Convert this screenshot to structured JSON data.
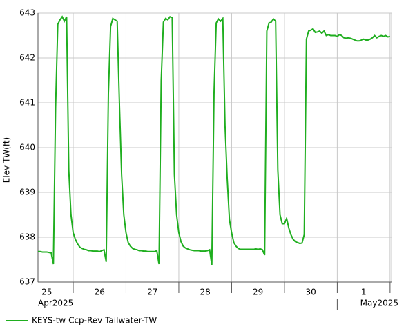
{
  "chart_data": {
    "type": "line",
    "y_label": "Elev TW(ft)",
    "x": [
      "2025-04-25T08:00",
      "2025-04-25T09:00",
      "2025-04-25T10:00",
      "2025-04-25T11:00",
      "2025-04-25T12:00",
      "2025-04-25T13:00",
      "2025-04-25T14:00",
      "2025-04-25T15:00",
      "2025-04-25T16:00",
      "2025-04-25T17:00",
      "2025-04-25T18:00",
      "2025-04-25T19:00",
      "2025-04-25T20:00",
      "2025-04-25T21:00",
      "2025-04-25T22:00",
      "2025-04-25T23:00",
      "2025-04-26T00:00",
      "2025-04-26T01:00",
      "2025-04-26T02:00",
      "2025-04-26T03:00",
      "2025-04-26T04:00",
      "2025-04-26T05:00",
      "2025-04-26T06:00",
      "2025-04-26T07:00",
      "2025-04-26T08:00",
      "2025-04-26T09:00",
      "2025-04-26T10:00",
      "2025-04-26T11:00",
      "2025-04-26T12:00",
      "2025-04-26T13:00",
      "2025-04-26T14:00",
      "2025-04-26T15:00",
      "2025-04-26T16:00",
      "2025-04-26T17:00",
      "2025-04-26T18:00",
      "2025-04-26T19:00",
      "2025-04-26T20:00",
      "2025-04-26T21:00",
      "2025-04-26T22:00",
      "2025-04-26T23:00",
      "2025-04-27T00:00",
      "2025-04-27T01:00",
      "2025-04-27T02:00",
      "2025-04-27T03:00",
      "2025-04-27T04:00",
      "2025-04-27T05:00",
      "2025-04-27T06:00",
      "2025-04-27T07:00",
      "2025-04-27T08:00",
      "2025-04-27T09:00",
      "2025-04-27T10:00",
      "2025-04-27T11:00",
      "2025-04-27T12:00",
      "2025-04-27T13:00",
      "2025-04-27T14:00",
      "2025-04-27T15:00",
      "2025-04-27T16:00",
      "2025-04-27T17:00",
      "2025-04-27T18:00",
      "2025-04-27T19:00",
      "2025-04-27T20:00",
      "2025-04-27T21:00",
      "2025-04-27T22:00",
      "2025-04-27T23:00",
      "2025-04-28T00:00",
      "2025-04-28T01:00",
      "2025-04-28T02:00",
      "2025-04-28T03:00",
      "2025-04-28T04:00",
      "2025-04-28T05:00",
      "2025-04-28T06:00",
      "2025-04-28T07:00",
      "2025-04-28T08:00",
      "2025-04-28T09:00",
      "2025-04-28T10:00",
      "2025-04-28T11:00",
      "2025-04-28T12:00",
      "2025-04-28T13:00",
      "2025-04-28T14:00",
      "2025-04-28T15:00",
      "2025-04-28T16:00",
      "2025-04-28T17:00",
      "2025-04-28T18:00",
      "2025-04-28T19:00",
      "2025-04-28T20:00",
      "2025-04-28T21:00",
      "2025-04-28T22:00",
      "2025-04-28T23:00",
      "2025-04-29T00:00",
      "2025-04-29T01:00",
      "2025-04-29T02:00",
      "2025-04-29T03:00",
      "2025-04-29T04:00",
      "2025-04-29T05:00",
      "2025-04-29T06:00",
      "2025-04-29T07:00",
      "2025-04-29T08:00",
      "2025-04-29T09:00",
      "2025-04-29T10:00",
      "2025-04-29T11:00",
      "2025-04-29T12:00",
      "2025-04-29T13:00",
      "2025-04-29T14:00",
      "2025-04-29T15:00",
      "2025-04-29T16:00",
      "2025-04-29T17:00",
      "2025-04-29T18:00",
      "2025-04-29T19:00",
      "2025-04-29T20:00",
      "2025-04-29T21:00",
      "2025-04-29T22:00",
      "2025-04-29T23:00",
      "2025-04-30T00:00",
      "2025-04-30T01:00",
      "2025-04-30T02:00",
      "2025-04-30T03:00",
      "2025-04-30T04:00",
      "2025-04-30T05:00",
      "2025-04-30T06:00",
      "2025-04-30T07:00",
      "2025-04-30T08:00",
      "2025-04-30T09:00",
      "2025-04-30T10:00",
      "2025-04-30T11:00",
      "2025-04-30T12:00",
      "2025-04-30T13:00",
      "2025-04-30T14:00",
      "2025-04-30T15:00",
      "2025-04-30T16:00",
      "2025-04-30T17:00",
      "2025-04-30T18:00",
      "2025-04-30T19:00",
      "2025-04-30T20:00",
      "2025-04-30T21:00",
      "2025-04-30T22:00",
      "2025-04-30T23:00",
      "2025-05-01T00:00",
      "2025-05-01T01:00",
      "2025-05-01T02:00",
      "2025-05-01T03:00",
      "2025-05-01T04:00",
      "2025-05-01T05:00",
      "2025-05-01T06:00",
      "2025-05-01T07:00",
      "2025-05-01T08:00",
      "2025-05-01T09:00",
      "2025-05-01T10:00",
      "2025-05-01T11:00",
      "2025-05-01T12:00",
      "2025-05-01T13:00",
      "2025-05-01T14:00",
      "2025-05-01T15:00",
      "2025-05-01T16:00",
      "2025-05-01T17:00",
      "2025-05-01T18:00",
      "2025-05-01T19:00",
      "2025-05-01T20:00",
      "2025-05-01T21:00",
      "2025-05-01T22:00",
      "2025-05-01T23:00",
      "2025-05-02T00:00"
    ],
    "series": [
      {
        "name": "KEYS-tw Ccp-Rev Tailwater-TW",
        "color": "#1fae1f",
        "values": [
          637.68,
          637.68,
          637.67,
          637.67,
          637.67,
          637.66,
          637.65,
          637.4,
          640.9,
          642.75,
          642.85,
          642.92,
          642.82,
          642.92,
          639.5,
          638.5,
          638.1,
          637.95,
          637.85,
          637.78,
          637.75,
          637.73,
          637.72,
          637.7,
          637.7,
          637.69,
          637.69,
          637.69,
          637.68,
          637.7,
          637.72,
          637.45,
          641.2,
          642.7,
          642.88,
          642.85,
          642.82,
          641.0,
          639.4,
          638.5,
          638.1,
          637.88,
          637.8,
          637.75,
          637.73,
          637.72,
          637.7,
          637.7,
          637.69,
          637.69,
          637.68,
          637.68,
          637.68,
          637.68,
          637.7,
          637.4,
          641.5,
          642.8,
          642.88,
          642.85,
          642.92,
          642.9,
          639.4,
          638.5,
          638.1,
          637.9,
          637.8,
          637.76,
          637.74,
          637.72,
          637.71,
          637.7,
          637.7,
          637.7,
          637.69,
          637.69,
          637.69,
          637.7,
          637.72,
          637.38,
          641.2,
          642.78,
          642.87,
          642.82,
          642.88,
          640.5,
          639.3,
          638.4,
          638.1,
          637.88,
          637.8,
          637.75,
          637.73,
          637.73,
          637.73,
          637.73,
          637.73,
          637.73,
          637.73,
          637.74,
          637.73,
          637.74,
          637.72,
          637.6,
          642.6,
          642.78,
          642.8,
          642.87,
          642.82,
          639.5,
          638.5,
          638.3,
          638.3,
          638.42,
          638.2,
          638.05,
          637.95,
          637.9,
          637.88,
          637.86,
          637.87,
          638.06,
          642.42,
          642.6,
          642.62,
          642.65,
          642.57,
          642.58,
          642.6,
          642.55,
          642.6,
          642.5,
          642.52,
          642.5,
          642.5,
          642.5,
          642.48,
          642.52,
          642.5,
          642.45,
          642.44,
          642.45,
          642.44,
          642.42,
          642.4,
          642.38,
          642.38,
          642.4,
          642.42,
          642.4,
          642.4,
          642.42,
          642.45,
          642.5,
          642.45,
          642.48,
          642.5,
          642.48,
          642.5,
          642.47,
          642.48
        ]
      }
    ],
    "xlim": [
      "2025-04-25T08:00",
      "2025-05-02T00:40"
    ],
    "xticks": [
      "2025-04-26T00:00",
      "2025-04-27T00:00",
      "2025-04-28T00:00",
      "2025-04-29T00:00",
      "2025-04-30T00:00",
      "2025-05-01T00:00",
      "2025-05-02T00:00"
    ],
    "day_labels": [
      {
        "value": "2025-04-25T12:00",
        "label": "25"
      },
      {
        "value": "2025-04-26T12:00",
        "label": "26"
      },
      {
        "value": "2025-04-27T12:00",
        "label": "27"
      },
      {
        "value": "2025-04-28T12:00",
        "label": "28"
      },
      {
        "value": "2025-04-29T12:00",
        "label": "29"
      },
      {
        "value": "2025-04-30T12:00",
        "label": "30"
      },
      {
        "value": "2025-05-01T12:00",
        "label": "1"
      }
    ],
    "month_labels": [
      {
        "value": "2025-04-25T08:00",
        "label": "Apr2025"
      },
      {
        "value": "2025-05-01T00:00",
        "label": "May2025"
      }
    ],
    "ylim": [
      637,
      643
    ],
    "yticks": [
      637,
      638,
      639,
      640,
      641,
      642,
      643
    ],
    "grid": true,
    "legend": "bottom-left"
  }
}
